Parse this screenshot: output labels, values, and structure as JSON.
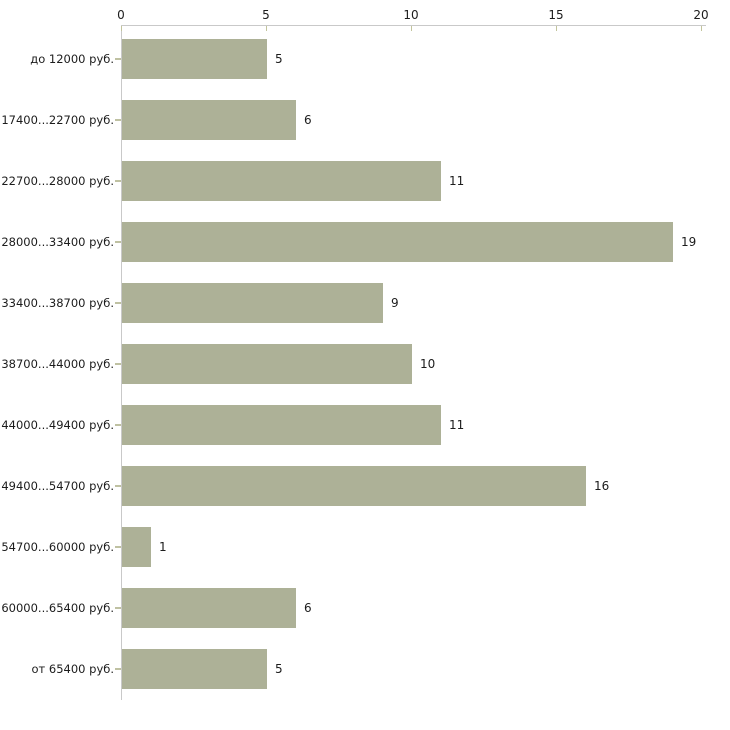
{
  "chart_data": {
    "type": "bar",
    "orientation": "horizontal",
    "title": "",
    "xlabel": "",
    "ylabel": "",
    "categories": [
      "до 12000 руб.",
      "17400...22700 руб.",
      "22700...28000 руб.",
      "28000...33400 руб.",
      "33400...38700 руб.",
      "38700...44000 руб.",
      "44000...49400 руб.",
      "49400...54700 руб.",
      "54700...60000 руб.",
      "60000...65400 руб.",
      "от 65400 руб."
    ],
    "values": [
      5,
      6,
      11,
      19,
      9,
      10,
      11,
      16,
      1,
      6,
      5
    ],
    "value_labels": [
      "5",
      "6",
      "11",
      "19",
      "9",
      "10",
      "11",
      "16",
      "1",
      "6",
      "5"
    ],
    "xlim": [
      0,
      20
    ],
    "x_ticks": [
      "0",
      "5",
      "10",
      "15",
      "20"
    ],
    "x_axis_position": "top",
    "grid": false,
    "legend": "none",
    "colors": {
      "bar_fill": "#adb197",
      "axis_line": "#c9c9c9",
      "tick_mark": "#c2c49c",
      "category_tick": "#bfc1a2",
      "text": "#1c1c1c",
      "background": "#ffffff"
    }
  }
}
